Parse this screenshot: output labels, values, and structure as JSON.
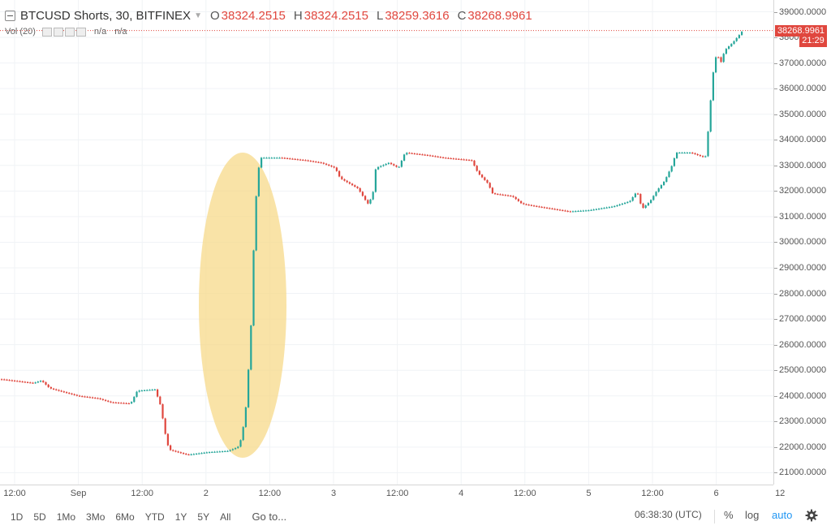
{
  "legend": {
    "symbol": "BTCUSD Shorts, 30, BITFINEX",
    "open_label": "O",
    "open_value": "38324.2515",
    "high_label": "H",
    "high_value": "38324.2515",
    "low_label": "L",
    "low_value": "38259.3616",
    "close_label": "C",
    "close_value": "38268.9961"
  },
  "volume": {
    "label": "Vol (20)",
    "value1": "n/a",
    "value2": "n/a"
  },
  "colors": {
    "up": "#26a69a",
    "down": "#e0473e",
    "highlight": "#f7d98a",
    "last_price": "#e0473e",
    "accent": "#2196f3"
  },
  "price_axis": {
    "ticks": [
      "39000.0000",
      "38000.0000",
      "37000.0000",
      "36000.0000",
      "35000.0000",
      "34000.0000",
      "33000.0000",
      "32000.0000",
      "31000.0000",
      "30000.0000",
      "29000.0000",
      "28000.0000",
      "27000.0000",
      "26000.0000",
      "25000.0000",
      "24000.0000",
      "23000.0000",
      "22000.0000",
      "21000.0000"
    ],
    "last_price": "38268.9961",
    "countdown": "21:29"
  },
  "time_axis": {
    "ticks": [
      "12:00",
      "Sep",
      "12:00",
      "2",
      "12:00",
      "3",
      "12:00",
      "4",
      "12:00",
      "5",
      "12:00",
      "6",
      "12"
    ]
  },
  "bottom_bar": {
    "ranges": [
      "1D",
      "5D",
      "1Mo",
      "3Mo",
      "6Mo",
      "YTD",
      "1Y",
      "5Y",
      "All"
    ],
    "goto": "Go to...",
    "clock": "06:38:30 (UTC)",
    "percent": "%",
    "log": "log",
    "auto": "auto",
    "settings_icon": "gear-icon"
  },
  "chart_data": {
    "type": "candlestick",
    "title": "BTCUSD Shorts, 30, BITFINEX",
    "ylim": [
      20600,
      39400
    ],
    "x_ticks": [
      "12:00",
      "Sep",
      "12:00",
      "2",
      "12:00",
      "3",
      "12:00",
      "4",
      "12:00",
      "5",
      "12:00",
      "6",
      "12"
    ],
    "grid": true,
    "highlight": "ellipse around the surge between day 2 and 12:00 of day 2",
    "path": [
      [
        0,
        24650
      ],
      [
        40,
        24500
      ],
      [
        50,
        24600
      ],
      [
        60,
        24300
      ],
      [
        95,
        24000
      ],
      [
        120,
        23900
      ],
      [
        135,
        23750
      ],
      [
        160,
        23700
      ],
      [
        168,
        24200
      ],
      [
        190,
        24250
      ],
      [
        197,
        23600
      ],
      [
        202,
        22600
      ],
      [
        207,
        21900
      ],
      [
        230,
        21700
      ],
      [
        255,
        21800
      ],
      [
        280,
        21850
      ],
      [
        292,
        22000
      ],
      [
        297,
        22400
      ],
      [
        302,
        23600
      ],
      [
        306,
        25500
      ],
      [
        309,
        27200
      ],
      [
        312,
        30300
      ],
      [
        316,
        32600
      ],
      [
        320,
        33300
      ],
      [
        345,
        33300
      ],
      [
        375,
        33200
      ],
      [
        395,
        33100
      ],
      [
        412,
        32900
      ],
      [
        418,
        32500
      ],
      [
        440,
        32100
      ],
      [
        452,
        31500
      ],
      [
        458,
        31800
      ],
      [
        462,
        32900
      ],
      [
        478,
        33100
      ],
      [
        490,
        32900
      ],
      [
        498,
        33500
      ],
      [
        525,
        33400
      ],
      [
        545,
        33300
      ],
      [
        580,
        33200
      ],
      [
        588,
        32700
      ],
      [
        600,
        32300
      ],
      [
        606,
        31900
      ],
      [
        630,
        31800
      ],
      [
        642,
        31500
      ],
      [
        660,
        31400
      ],
      [
        680,
        31300
      ],
      [
        700,
        31200
      ],
      [
        725,
        31250
      ],
      [
        755,
        31400
      ],
      [
        775,
        31600
      ],
      [
        784,
        32000
      ],
      [
        790,
        31300
      ],
      [
        800,
        31600
      ],
      [
        808,
        32000
      ],
      [
        818,
        32400
      ],
      [
        827,
        33000
      ],
      [
        832,
        33500
      ],
      [
        850,
        33500
      ],
      [
        868,
        33300
      ],
      [
        872,
        34500
      ],
      [
        875,
        35700
      ],
      [
        878,
        36700
      ],
      [
        882,
        37400
      ],
      [
        887,
        37000
      ],
      [
        892,
        37500
      ],
      [
        902,
        37800
      ],
      [
        910,
        38100
      ],
      [
        915,
        38300
      ]
    ]
  }
}
